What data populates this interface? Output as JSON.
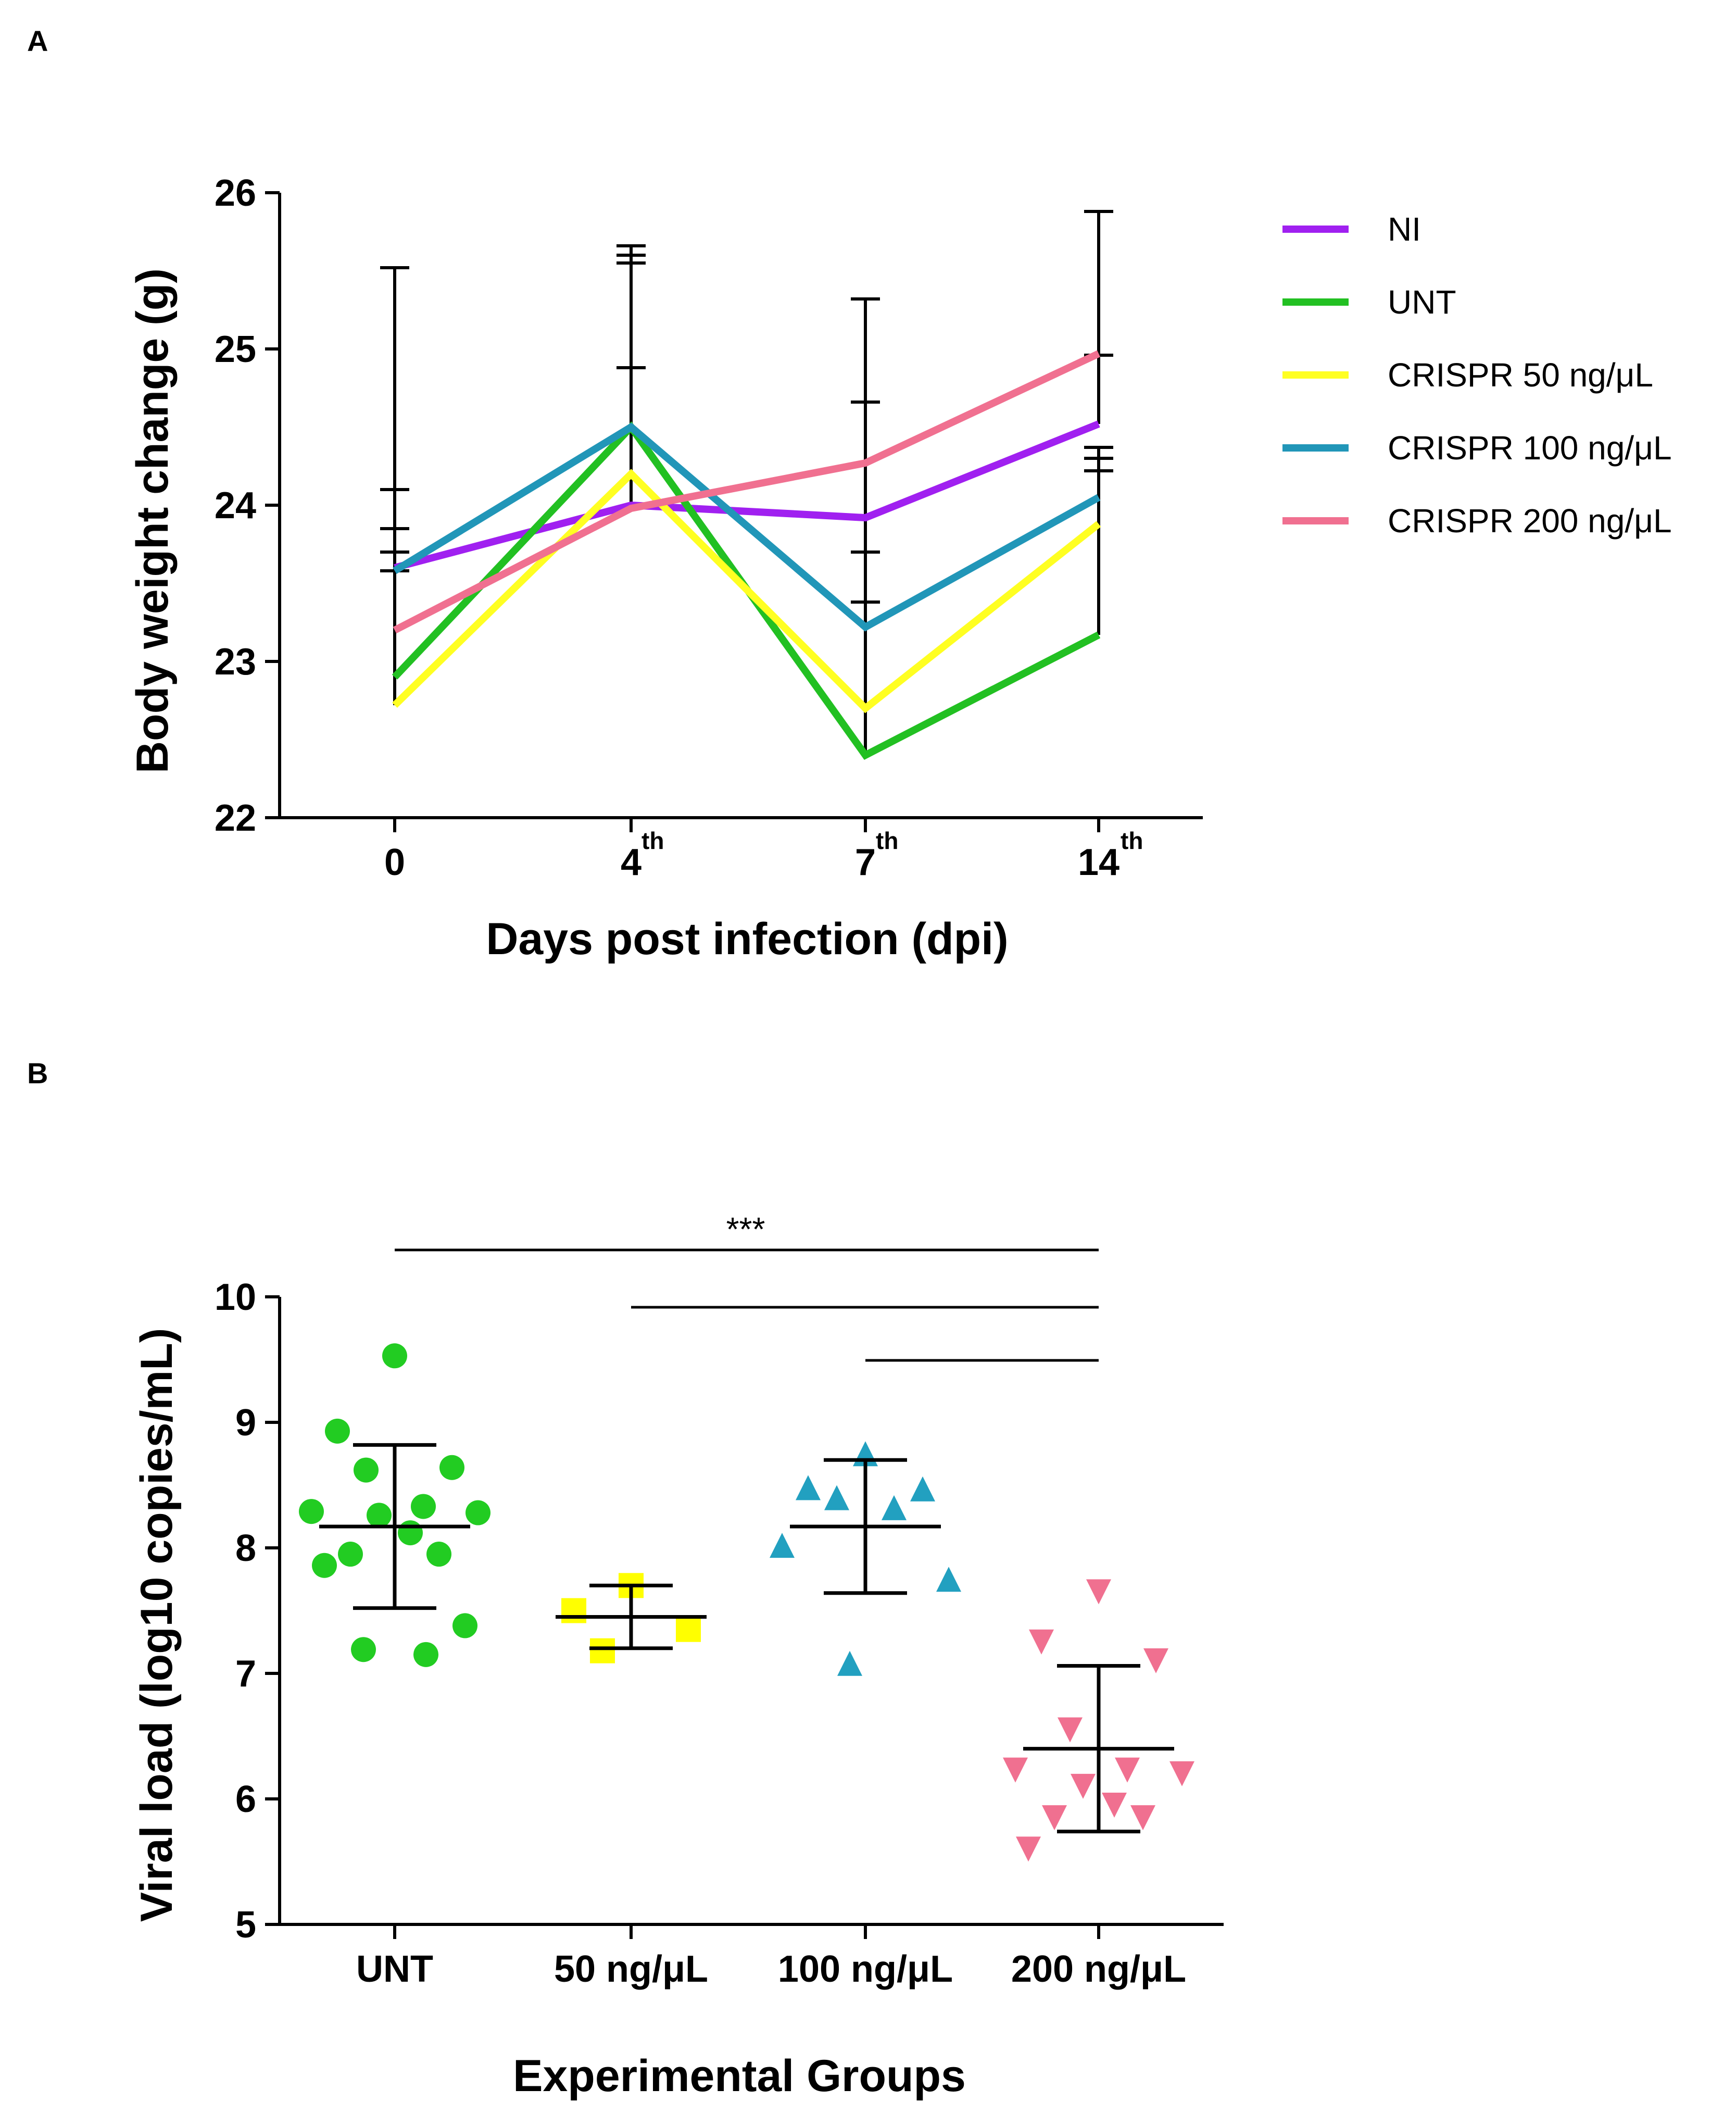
{
  "panels": {
    "a_label": "A",
    "b_label": "B"
  },
  "chart_data": [
    {
      "type": "line",
      "panel": "A",
      "xlabel": "Days post infection (dpi)",
      "ylabel": "Body weight change (g)",
      "categories": [
        {
          "main": "0",
          "sup": ""
        },
        {
          "main": "4",
          "sup": "th"
        },
        {
          "main": "7",
          "sup": "th"
        },
        {
          "main": "14",
          "sup": "th"
        }
      ],
      "ylim": [
        22,
        26
      ],
      "yticks": [
        22,
        23,
        24,
        25,
        26
      ],
      "legend_position": "right",
      "series": [
        {
          "name": "NI",
          "color": "#a020f0",
          "values": [
            23.6,
            24.0,
            23.92,
            24.52
          ],
          "err_upper": [
            25.52,
            25.6,
            25.32,
            25.88
          ]
        },
        {
          "name": "UNT",
          "color": "#22c022",
          "values": [
            22.9,
            24.5,
            22.4,
            23.17
          ],
          "err_upper": [
            23.7,
            25.66,
            23.38,
            24.3
          ]
        },
        {
          "name": "CRISPR 50 ng/μL",
          "color": "#ffff22",
          "values": [
            22.72,
            24.2,
            22.7,
            23.88
          ],
          "err_upper": [
            23.85,
            24.88,
            23.7,
            24.22
          ]
        },
        {
          "name": "CRISPR 100 ng/μL",
          "color": "#2196b8",
          "values": [
            23.58,
            24.5,
            23.22,
            24.05
          ],
          "err_upper": [
            24.1,
            25.55,
            24.66,
            24.37
          ]
        },
        {
          "name": "CRISPR 200 ng/μL",
          "color": "#f07090",
          "values": [
            23.2,
            23.98,
            24.27,
            24.97
          ],
          "err_upper": [
            23.58,
            24.88,
            25.32,
            24.96
          ]
        }
      ]
    },
    {
      "type": "scatter",
      "panel": "B",
      "xlabel": "Experimental Groups",
      "ylabel": "Viral load (log10 copies/mL)",
      "ylim": [
        5,
        10
      ],
      "yticks": [
        5,
        6,
        7,
        8,
        9,
        10
      ],
      "significance": "***",
      "groups": [
        {
          "name": "UNT",
          "color": "#22cc22",
          "marker": "circle",
          "mean": 8.17,
          "sd": 0.65,
          "points": [
            9.53,
            8.93,
            8.64,
            8.62,
            8.33,
            8.29,
            8.28,
            8.26,
            8.12,
            7.95,
            7.95,
            7.86,
            7.38,
            7.19,
            7.15
          ]
        },
        {
          "name": "50 ng/μL",
          "color": "#ffff00",
          "marker": "square",
          "mean": 7.45,
          "sd": 0.25,
          "points": [
            7.7,
            7.5,
            7.35,
            7.18
          ]
        },
        {
          "name": "100 ng/μL",
          "color": "#22a0c0",
          "marker": "triangle-up",
          "mean": 8.17,
          "sd": 0.53,
          "points": [
            8.75,
            8.48,
            8.47,
            8.4,
            8.32,
            8.02,
            7.75,
            7.08
          ]
        },
        {
          "name": "200 ng/μL",
          "color": "#f07090",
          "marker": "triangle-down",
          "mean": 6.4,
          "sd": 0.66,
          "points": [
            7.65,
            7.25,
            7.1,
            6.55,
            6.23,
            6.23,
            6.2,
            6.1,
            5.95,
            5.85,
            5.85,
            5.6
          ]
        }
      ],
      "comparisons": [
        {
          "from": 0,
          "to": 3
        },
        {
          "from": 1,
          "to": 3
        },
        {
          "from": 2,
          "to": 3
        }
      ]
    }
  ]
}
